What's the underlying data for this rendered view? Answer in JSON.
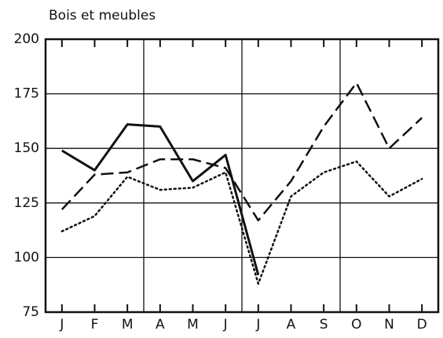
{
  "chart_data": {
    "type": "line",
    "title": "Bois et meubles",
    "categories": [
      "J",
      "F",
      "M",
      "A",
      "M",
      "J",
      "J",
      "A",
      "S",
      "O",
      "N",
      "D"
    ],
    "series": [
      {
        "color": "#111111",
        "dash": "solid",
        "values": [
          149,
          140,
          161,
          160,
          135,
          147,
          92,
          null,
          null,
          null,
          null,
          null
        ]
      },
      {
        "color": "#111111",
        "dash": "dashed",
        "values": [
          122,
          138,
          139,
          145,
          145,
          141,
          117,
          135,
          160,
          180,
          150,
          164
        ]
      },
      {
        "color": "#111111",
        "dash": "dotted",
        "values": [
          112,
          119,
          137,
          131,
          132,
          139,
          88,
          128,
          139,
          144,
          128,
          136
        ]
      }
    ],
    "ylim": [
      75,
      200
    ],
    "yticks": [
      75,
      100,
      125,
      150,
      175,
      200
    ],
    "grid": true
  }
}
